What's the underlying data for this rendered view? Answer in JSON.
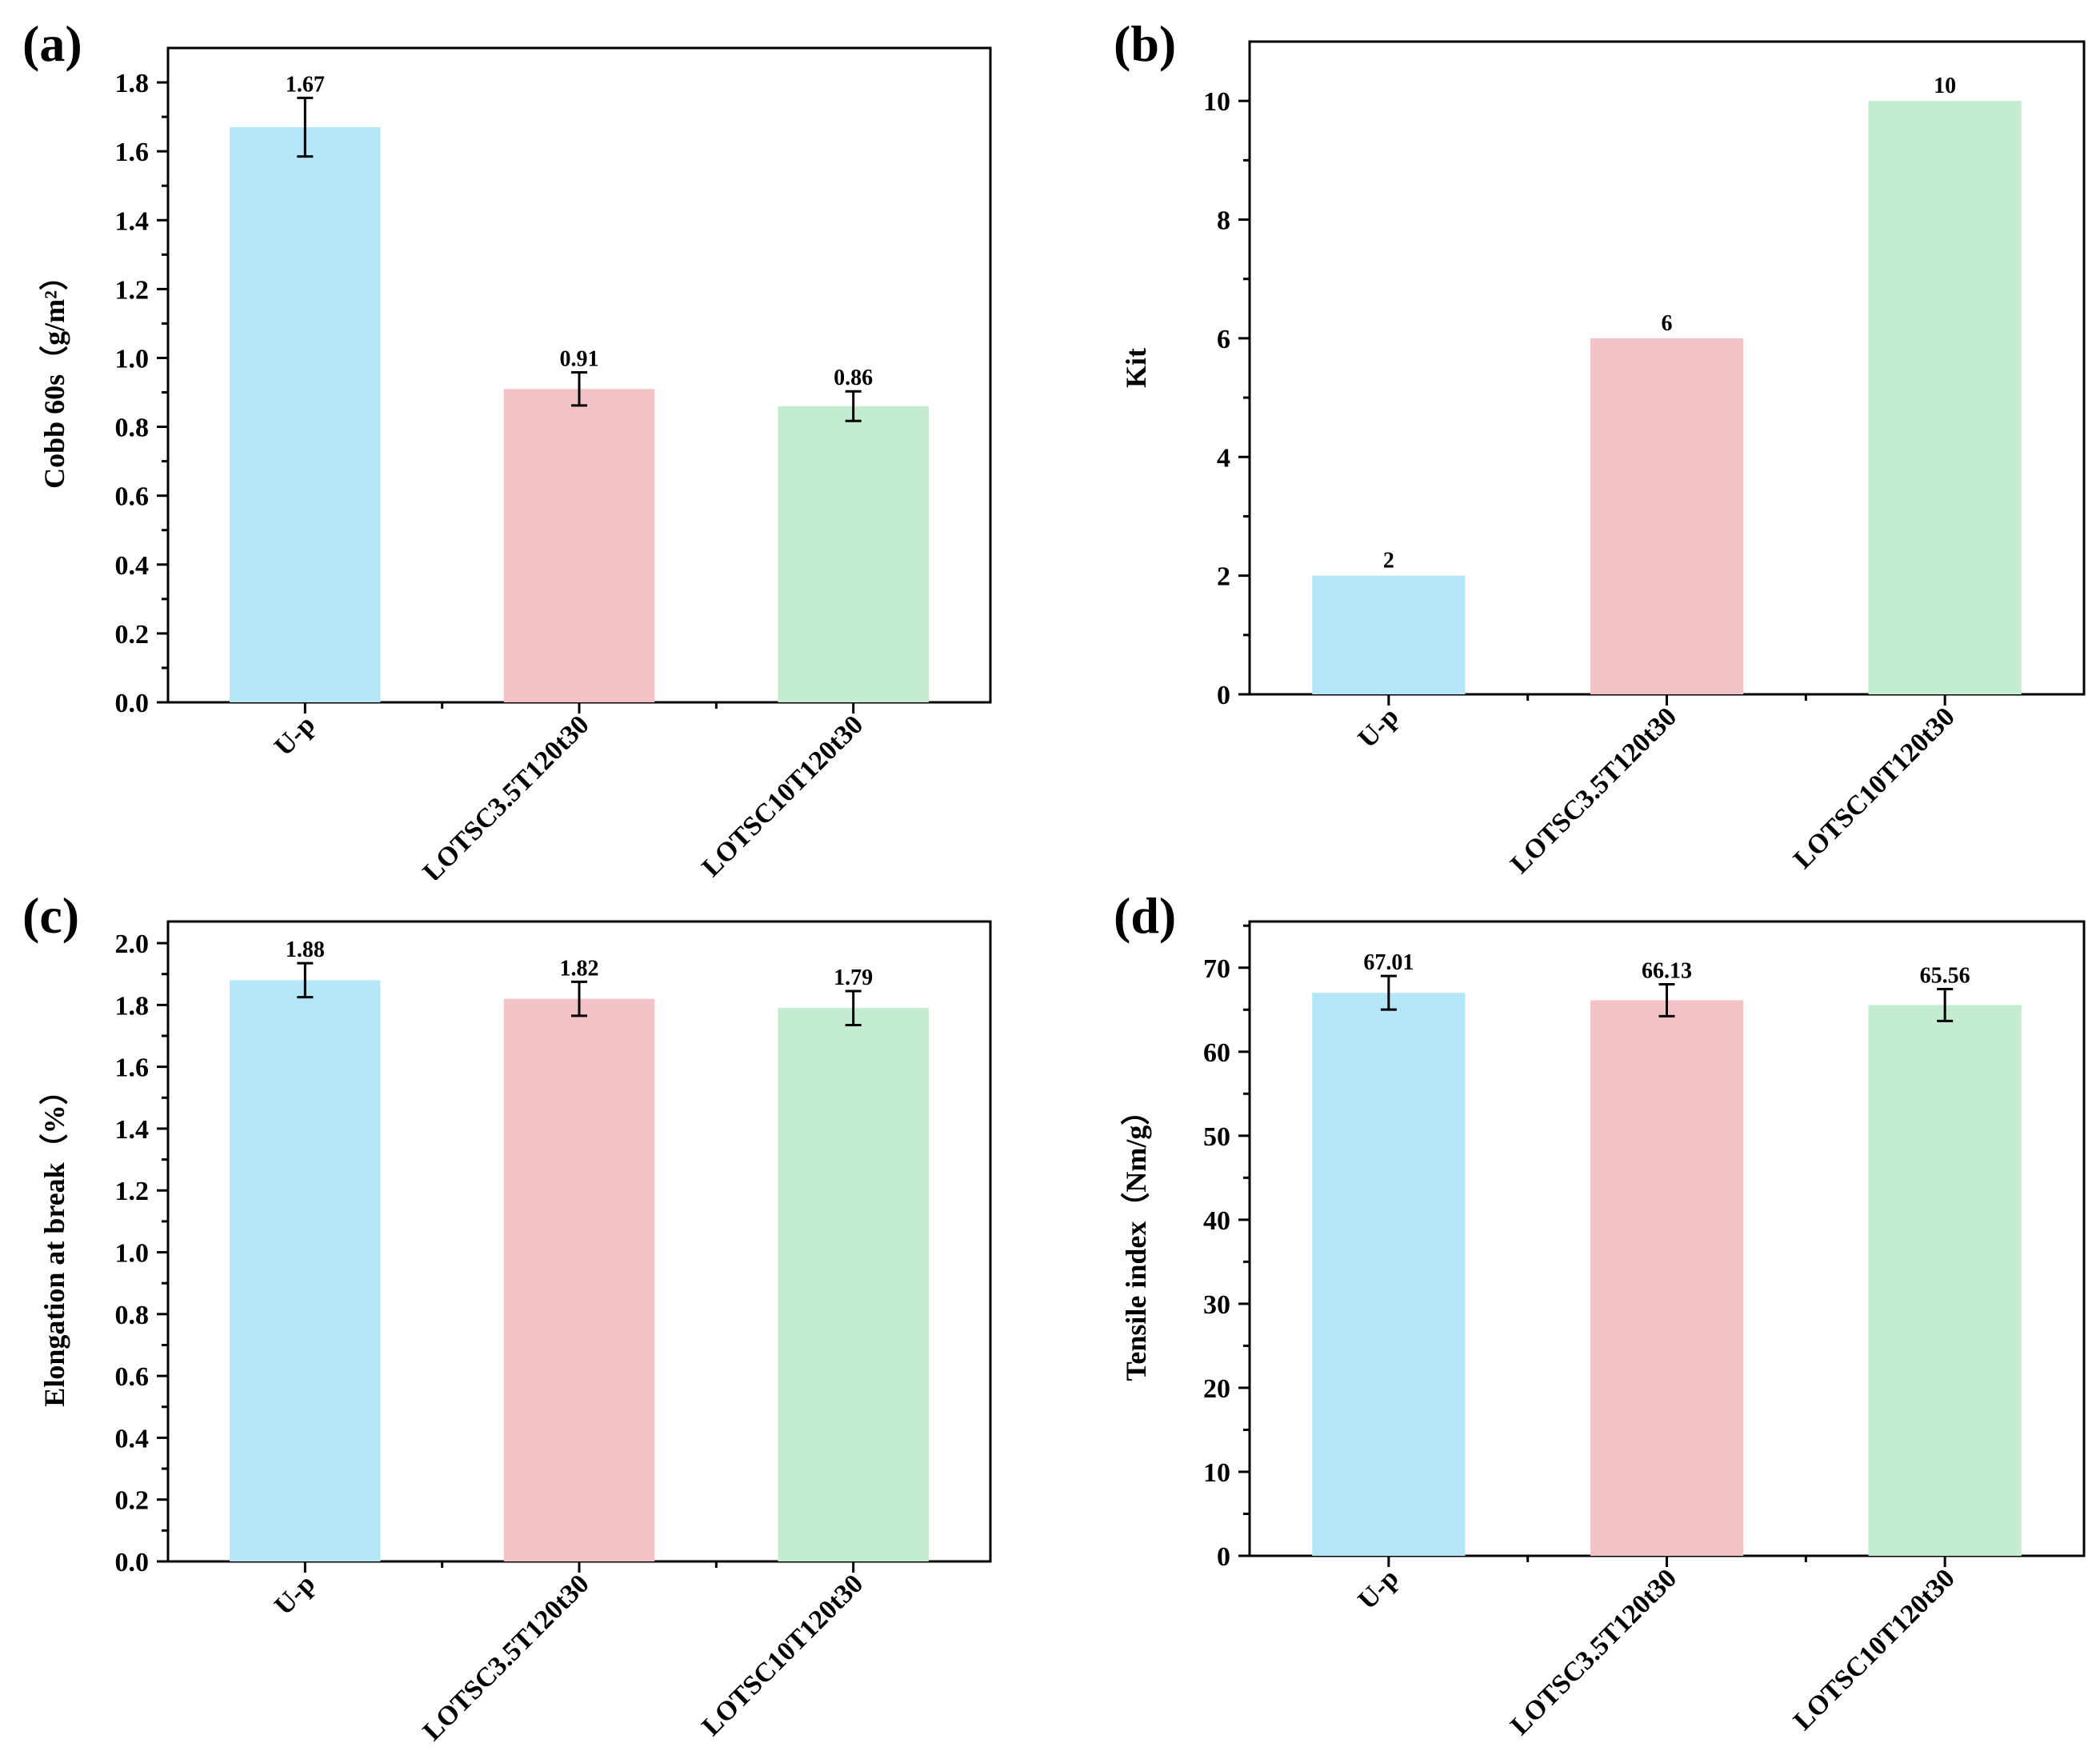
{
  "colors": [
    "#b5e6f8",
    "#f3c2c6",
    "#c4ecd0"
  ],
  "chart_data": [
    {
      "panel": "(a)",
      "type": "bar",
      "categories": [
        "U-p",
        "LOTSC3.5T120t30",
        "LOTSC10T120t30"
      ],
      "values": [
        1.67,
        0.91,
        0.86
      ],
      "value_labels": [
        "1.67",
        "0.91",
        "0.86"
      ],
      "errors": [
        0.085,
        0.048,
        0.043
      ],
      "ylabel": "Cobb 60s（g/m²）",
      "ylim": [
        0,
        1.9
      ],
      "yticks": [
        0.0,
        0.2,
        0.4,
        0.6,
        0.8,
        1.0,
        1.2,
        1.4,
        1.6,
        1.8
      ],
      "ytick_labels": [
        "0.0",
        "0.2",
        "0.4",
        "0.6",
        "0.8",
        "1.0",
        "1.2",
        "1.4",
        "1.6",
        "1.8"
      ]
    },
    {
      "panel": "(b)",
      "type": "bar",
      "categories": [
        "U-p",
        "LOTSC3.5T120t30",
        "LOTSC10T120t30"
      ],
      "values": [
        2,
        6,
        10
      ],
      "value_labels": [
        "2",
        "6",
        "10"
      ],
      "errors": [
        0,
        0,
        0
      ],
      "ylabel": "Kit",
      "ylim": [
        0,
        11
      ],
      "yticks": [
        0,
        2,
        4,
        6,
        8,
        10
      ],
      "ytick_labels": [
        "0",
        "2",
        "4",
        "6",
        "8",
        "10"
      ]
    },
    {
      "panel": "(c)",
      "type": "bar",
      "categories": [
        "U-p",
        "LOTSC3.5T120t30",
        "LOTSC10T120t30"
      ],
      "values": [
        1.88,
        1.82,
        1.79
      ],
      "value_labels": [
        "1.88",
        "1.82",
        "1.79"
      ],
      "errors": [
        0.055,
        0.055,
        0.055
      ],
      "ylabel": "Elongation at break（%）",
      "ylim": [
        0,
        2.07
      ],
      "yticks": [
        0.0,
        0.2,
        0.4,
        0.6,
        0.8,
        1.0,
        1.2,
        1.4,
        1.6,
        1.8,
        2.0
      ],
      "ytick_labels": [
        "0.0",
        "0.2",
        "0.4",
        "0.6",
        "0.8",
        "1.0",
        "1.2",
        "1.4",
        "1.6",
        "1.8",
        "2.0"
      ]
    },
    {
      "panel": "(d)",
      "type": "bar",
      "categories": [
        "U-p",
        "LOTSC3.5T120t30",
        "LOTSC10T120t30"
      ],
      "values": [
        67.01,
        66.13,
        65.56
      ],
      "value_labels": [
        "67.01",
        "66.13",
        "65.56"
      ],
      "errors": [
        2.0,
        1.9,
        1.9
      ],
      "ylabel": "Tensile index（Nm/g）",
      "ylim": [
        0,
        75.5
      ],
      "yticks": [
        0,
        10,
        20,
        30,
        40,
        50,
        60,
        70
      ],
      "ytick_labels": [
        "0",
        "10",
        "20",
        "30",
        "40",
        "50",
        "60",
        "70"
      ]
    }
  ]
}
